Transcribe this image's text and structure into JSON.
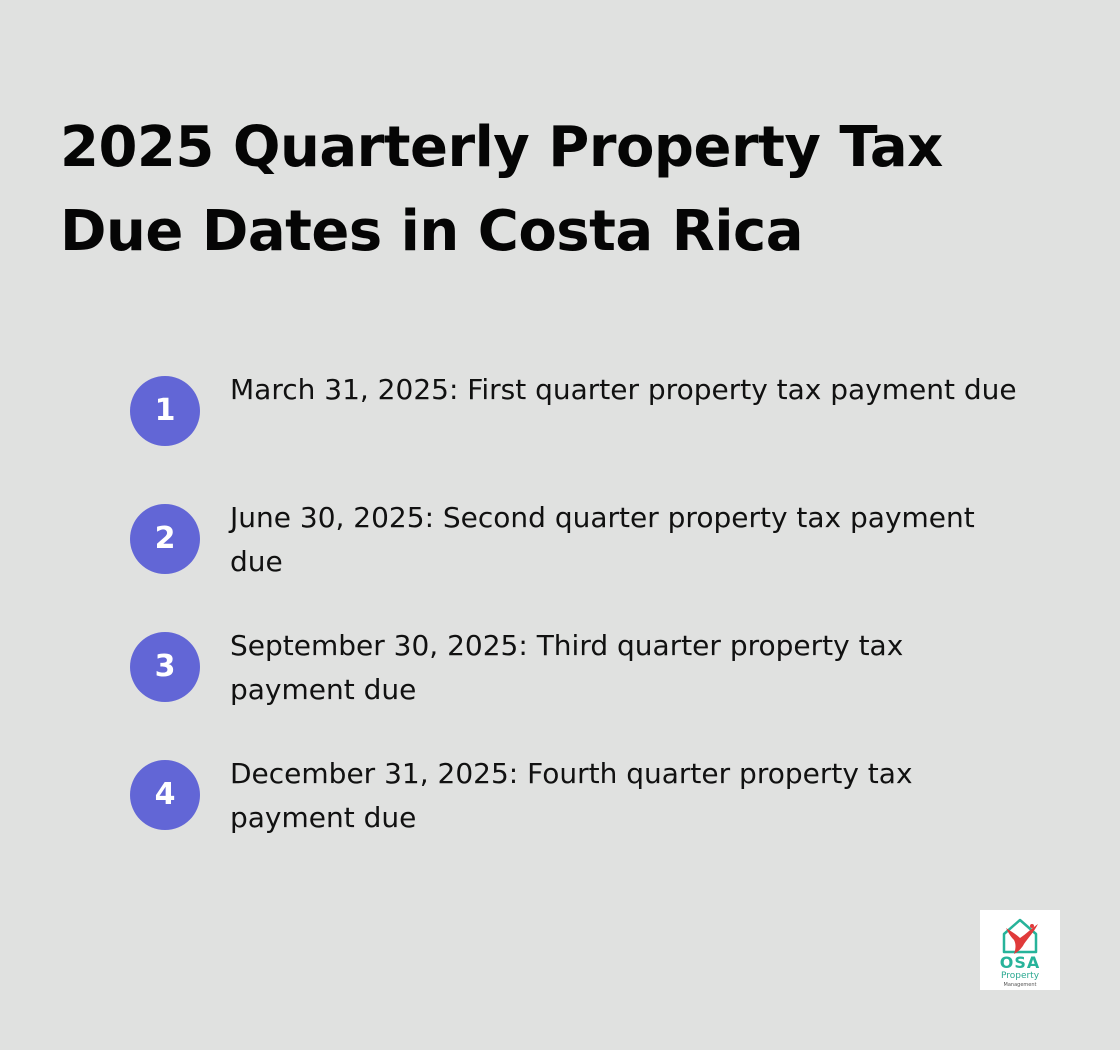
{
  "title": "2025 Quarterly Property Tax Due Dates in Costa Rica",
  "items": [
    {
      "number": "1",
      "text": "March 31, 2025: First quarter property tax payment due"
    },
    {
      "number": "2",
      "text": "June 30, 2025: Second quarter property tax payment due"
    },
    {
      "number": "3",
      "text": "September 30, 2025: Third quarter property tax payment due"
    },
    {
      "number": "4",
      "text": "December 31, 2025: Fourth quarter property tax payment due"
    }
  ],
  "logo": {
    "name": "OSA",
    "line1": "Property",
    "line2": "Management"
  },
  "colors": {
    "background": "#e0e1e0",
    "badge": "#6266d6",
    "logo_green": "#27b39a",
    "logo_red": "#e03a3a"
  }
}
